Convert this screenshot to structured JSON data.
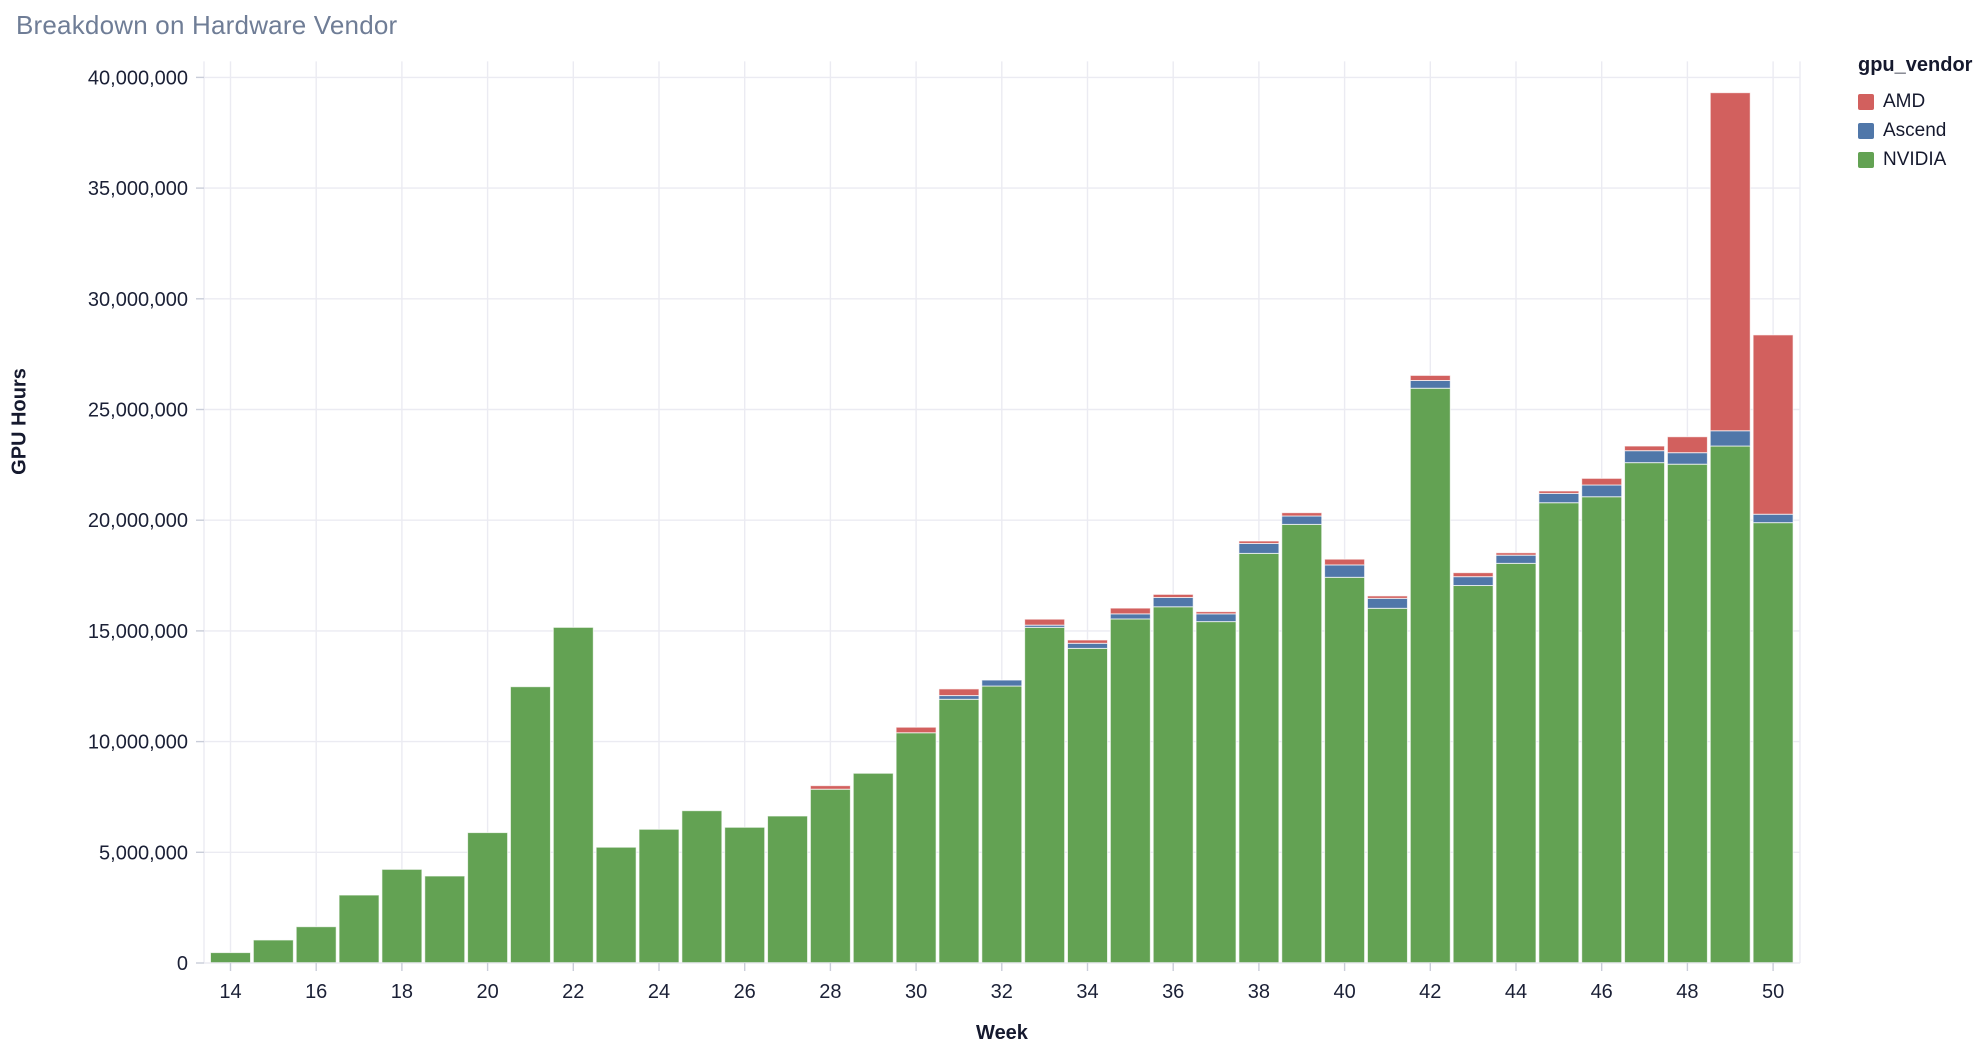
{
  "chart_data": {
    "type": "bar",
    "stacked": true,
    "title": "Breakdown on Hardware Vendor",
    "xlabel": "Week",
    "ylabel": "GPU Hours",
    "legend_title": "gpu_vendor",
    "legend_position": "top-right",
    "grid": true,
    "x": [
      14,
      15,
      16,
      17,
      18,
      19,
      20,
      21,
      22,
      23,
      24,
      25,
      26,
      27,
      28,
      29,
      30,
      31,
      32,
      33,
      34,
      35,
      36,
      37,
      38,
      39,
      40,
      41,
      42,
      43,
      44,
      45,
      46,
      47,
      48,
      49,
      50
    ],
    "x_ticks": [
      14,
      16,
      18,
      20,
      22,
      24,
      26,
      28,
      30,
      32,
      34,
      36,
      38,
      40,
      42,
      44,
      46,
      48,
      50
    ],
    "ylim": [
      0,
      40000000
    ],
    "y_ticks": [
      0,
      5000000,
      10000000,
      15000000,
      20000000,
      25000000,
      30000000,
      35000000,
      40000000
    ],
    "y_tick_labels": [
      "0",
      "5,000,000",
      "10,000,000",
      "15,000,000",
      "20,000,000",
      "25,000,000",
      "30,000,000",
      "35,000,000",
      "40,000,000"
    ],
    "stack_order_bottom_to_top": [
      "NVIDIA",
      "Ascend",
      "AMD"
    ],
    "series": [
      {
        "name": "AMD",
        "color": "#d2605e",
        "values": [
          0,
          0,
          0,
          0,
          0,
          0,
          0,
          0,
          0,
          0,
          0,
          0,
          0,
          0,
          160000,
          0,
          250000,
          300000,
          0,
          270000,
          150000,
          260000,
          140000,
          100000,
          110000,
          150000,
          260000,
          110000,
          230000,
          180000,
          110000,
          110000,
          300000,
          210000,
          720000,
          15270000,
          8100000
        ]
      },
      {
        "name": "Ascend",
        "color": "#5077a9",
        "values": [
          0,
          0,
          0,
          0,
          0,
          0,
          0,
          0,
          0,
          0,
          0,
          0,
          0,
          0,
          0,
          0,
          0,
          170000,
          270000,
          100000,
          230000,
          230000,
          420000,
          350000,
          450000,
          380000,
          560000,
          450000,
          350000,
          400000,
          370000,
          420000,
          530000,
          540000,
          520000,
          690000,
          380000
        ]
      },
      {
        "name": "NVIDIA",
        "color": "#63a253",
        "values": [
          470000,
          1040000,
          1640000,
          3070000,
          4230000,
          3930000,
          5890000,
          12480000,
          15160000,
          5230000,
          6040000,
          6880000,
          6130000,
          6640000,
          7850000,
          8570000,
          10400000,
          11910000,
          12510000,
          15160000,
          14210000,
          15540000,
          16090000,
          15420000,
          18500000,
          19810000,
          17420000,
          16020000,
          25960000,
          17050000,
          18050000,
          20790000,
          21060000,
          22600000,
          22530000,
          23350000,
          19890000
        ]
      }
    ],
    "colors": {
      "title_text": "#6f7d96",
      "axis_text": "#1b2036",
      "axis_title_text": "#15192e",
      "gridline": "#ebebf2",
      "tick_mark": "#c9cdd9",
      "background": "#ffffff"
    }
  }
}
